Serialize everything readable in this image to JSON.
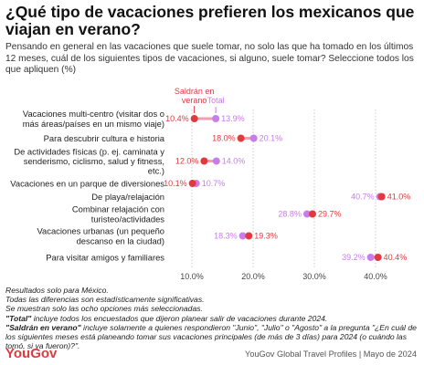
{
  "title": "¿Qué tipo de vacaciones prefieren los mexicanos que viajan en verano?",
  "subtitle": "Pensando en general en las vacaciones que suele tomar, no solo las que ha tomado en los últimos 12 meses, cuál de los siguientes tipos de vacaciones, si alguno, suele tomar? Seleccione todos los que apliquen (%)",
  "colors": {
    "summer": "#e03a3e",
    "total": "#c77dea",
    "connector": "#f0a0b0",
    "grid": "#cccccc"
  },
  "chart_data": {
    "type": "dumbbell",
    "series": [
      {
        "name": "Saldrán en verano",
        "label_lines": [
          "Saldrán en",
          "verano"
        ]
      },
      {
        "name": "Total",
        "label_lines": [
          "Total"
        ]
      }
    ],
    "categories": [
      {
        "label_lines": [
          "Vacaciones multi-centro (visitar dos o",
          "más áreas/países en un mismo viaje)"
        ],
        "summer": 10.4,
        "total": 13.9,
        "summer_label": "10.4%",
        "total_label": "13.9%"
      },
      {
        "label_lines": [
          "Para descubrir cultura e historia"
        ],
        "summer": 18.0,
        "total": 20.1,
        "summer_label": "18.0%",
        "total_label": "20.1%"
      },
      {
        "label_lines": [
          "De actividades físicas (p. ej. caminata y",
          "senderismo, ciclismo, salud y fitness,",
          "etc.)"
        ],
        "summer": 12.0,
        "total": 14.0,
        "summer_label": "12.0%",
        "total_label": "14.0%"
      },
      {
        "label_lines": [
          "Vacaciones en un parque de diversiones"
        ],
        "summer": 10.1,
        "total": 10.7,
        "summer_label": "10.1%",
        "total_label": "10.7%"
      },
      {
        "label_lines": [
          "De playa/relajación"
        ],
        "summer": 41.0,
        "total": 40.7,
        "summer_label": "41.0%",
        "total_label": "40.7%"
      },
      {
        "label_lines": [
          "Combinar relajación con",
          "turisteo/actividades"
        ],
        "summer": 29.7,
        "total": 28.8,
        "summer_label": "29.7%",
        "total_label": "28.8%"
      },
      {
        "label_lines": [
          "Vacaciones urbanas (un pequeño",
          "descanso en la ciudad)"
        ],
        "summer": 19.3,
        "total": 18.3,
        "summer_label": "19.3%",
        "total_label": "18.3%"
      },
      {
        "label_lines": [
          "Para visitar amigos y familiares"
        ],
        "summer": 40.4,
        "total": 39.2,
        "summer_label": "40.4%",
        "total_label": "39.2%"
      }
    ],
    "x_ticks": [
      10,
      20,
      30,
      40
    ],
    "x_tick_labels": [
      "10.0%",
      "20.0%",
      "30.0%",
      "40.0%"
    ],
    "xlim": [
      7,
      43
    ],
    "grid": true
  },
  "footnotes": [
    {
      "bold": "",
      "text": "Resultados solo para México."
    },
    {
      "bold": "",
      "text": "Todas las diferencias son estadísticamente significativas."
    },
    {
      "bold": "",
      "text": "Se muestran solo las ocho opciones más seleccionadas."
    },
    {
      "bold": "\"Total\"",
      "text": " incluye todos los encuestados que dijeron planear salir de vacaciones durante 2024."
    },
    {
      "bold": "\"Saldrán en verano\"",
      "text": " incluye solamente a quienes respondieron \"Junio\", \"Julio\" o \"Agosto\" a la pregunta \"¿En cuál de los siguientes meses está planeando tomar sus vacaciones principales (de más de 3 días) para 2024 (o cuándo las tomó, si ya fueron)?\"."
    }
  ],
  "brand": "YouGov",
  "source": "YouGov Global Travel Profiles | Mayo de 2024"
}
